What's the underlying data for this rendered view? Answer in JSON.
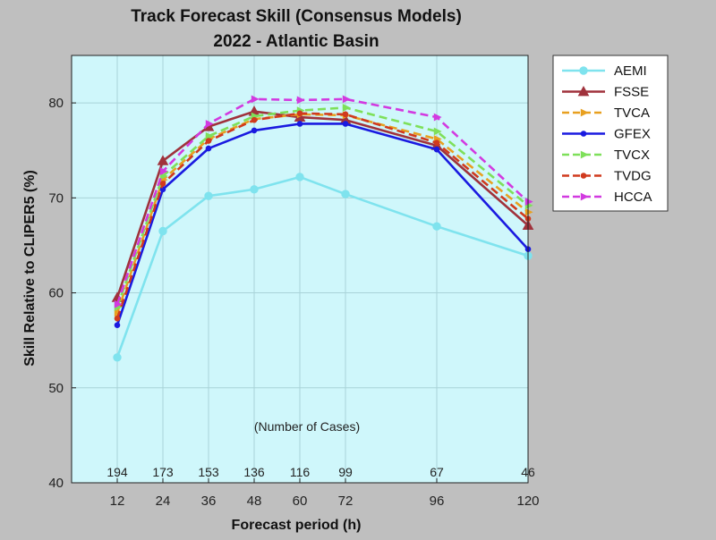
{
  "chart_data": {
    "type": "line",
    "title": [
      "Track Forecast Skill (Consensus Models)",
      "2022 - Atlantic Basin"
    ],
    "xlabel": "Forecast period (h)",
    "ylabel": "Skill Relative to CLIPER5 (%)",
    "x": [
      12,
      24,
      36,
      48,
      60,
      72,
      96,
      120
    ],
    "xticks": [
      "12",
      "24",
      "36",
      "48",
      "60",
      "72",
      "96",
      "120"
    ],
    "xlim": [
      0,
      120
    ],
    "ylim": [
      40,
      85
    ],
    "yticks": [
      40,
      50,
      60,
      70,
      80
    ],
    "grid": true,
    "legend_position": "outside-top-right",
    "cases_label": "(Number of Cases)",
    "cases": [
      "194",
      "173",
      "153",
      "136",
      "116",
      "99",
      "67",
      "46"
    ],
    "series": [
      {
        "name": "AEMI",
        "color": "#7fe3ee",
        "dash": "solid",
        "marker": "circle",
        "values": [
          53.2,
          66.5,
          70.2,
          70.9,
          72.2,
          70.4,
          67.0,
          63.9
        ]
      },
      {
        "name": "FSSE",
        "color": "#a0323c",
        "dash": "solid",
        "marker": "triangle",
        "values": [
          59.5,
          73.9,
          77.5,
          79.1,
          78.5,
          78.2,
          75.5,
          67.1
        ]
      },
      {
        "name": "TVCA",
        "color": "#e8a020",
        "dash": "dashed",
        "marker": "arrow",
        "values": [
          57.9,
          71.9,
          76.2,
          78.3,
          78.8,
          78.7,
          76.2,
          68.5
        ]
      },
      {
        "name": "GFEX",
        "color": "#1a1ae0",
        "dash": "solid",
        "marker": "dot",
        "values": [
          56.6,
          70.9,
          75.2,
          77.1,
          77.8,
          77.8,
          75.1,
          64.6
        ]
      },
      {
        "name": "TVCX",
        "color": "#7ee05a",
        "dash": "dashed",
        "marker": "arrow",
        "values": [
          58.5,
          72.3,
          76.5,
          78.6,
          79.2,
          79.5,
          77.0,
          69.2
        ]
      },
      {
        "name": "TVDG",
        "color": "#d03a1e",
        "dash": "dashed",
        "marker": "dot",
        "values": [
          57.3,
          71.5,
          76.0,
          78.2,
          78.9,
          78.8,
          75.8,
          67.8
        ]
      },
      {
        "name": "HCCA",
        "color": "#d23ae0",
        "dash": "dashed",
        "marker": "arrow",
        "values": [
          58.8,
          72.8,
          77.8,
          80.4,
          80.3,
          80.4,
          78.5,
          69.6
        ]
      }
    ]
  }
}
